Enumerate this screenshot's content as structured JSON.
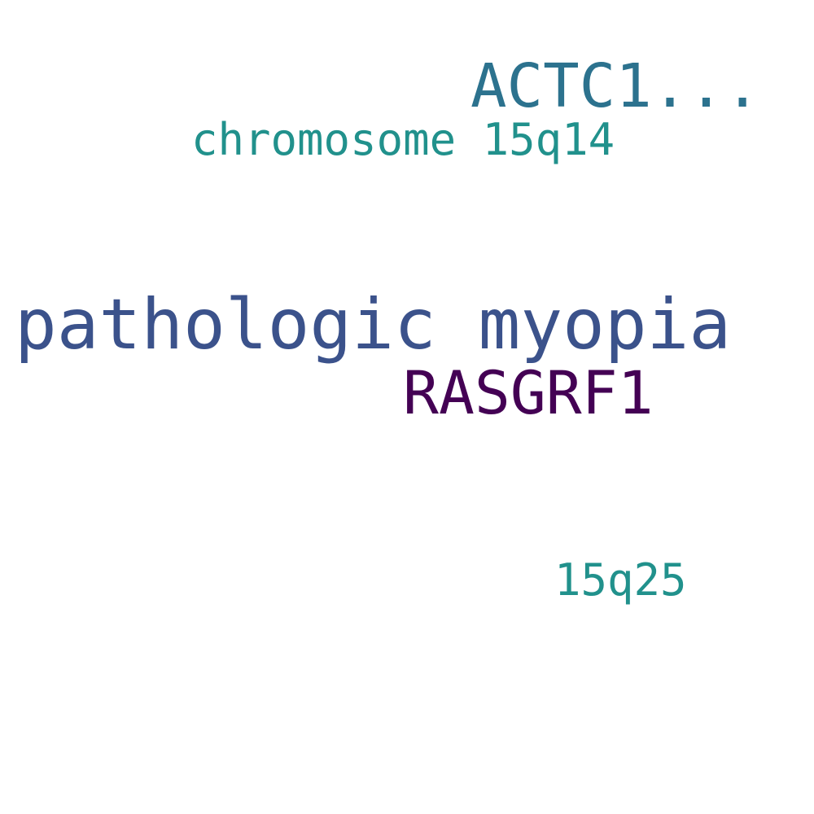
{
  "words": [
    {
      "text": "pathologic myopia",
      "color": "#3b528b"
    },
    {
      "text": "ACTC1...",
      "color": "#2c728e"
    },
    {
      "text": "RASGRF1",
      "color": "#440154"
    },
    {
      "text": "chromosome 15q14",
      "color": "#21918c"
    },
    {
      "text": "15q25",
      "color": "#21918c"
    }
  ]
}
